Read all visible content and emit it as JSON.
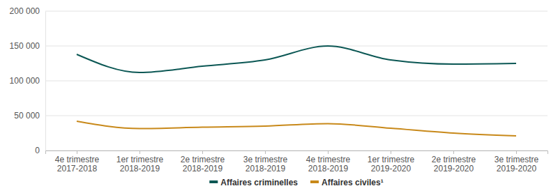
{
  "chart_data": {
    "type": "line",
    "categories": [
      "4e trimestre 2017-2018",
      "1er trimestre 2018-2019",
      "2e trimestre 2018-2019",
      "3e trimestre 2018-2019",
      "4e trimestre 2018-2019",
      "1er trimestre 2019-2020",
      "2e trimestre 2019-2020",
      "3e trimestre 2019-2020"
    ],
    "series": [
      {
        "name": "Affaires criminelles",
        "color": "#0b5754",
        "values": [
          138000,
          112000,
          121000,
          130000,
          150000,
          130000,
          124000,
          125000
        ]
      },
      {
        "name": "Affaires civiles¹",
        "color": "#c8891a",
        "values": [
          42000,
          31500,
          33500,
          35000,
          38500,
          32000,
          25000,
          21000
        ]
      }
    ],
    "ylim": [
      0,
      200000
    ],
    "yticks": [
      0,
      {
        "value": 50000,
        "label": "50 000"
      },
      {
        "value": 100000,
        "label": "100 000"
      },
      {
        "value": 150000,
        "label": "150 000"
      },
      {
        "value": 200000,
        "label": "200 000"
      }
    ],
    "grid": true,
    "legend": "bottom"
  }
}
